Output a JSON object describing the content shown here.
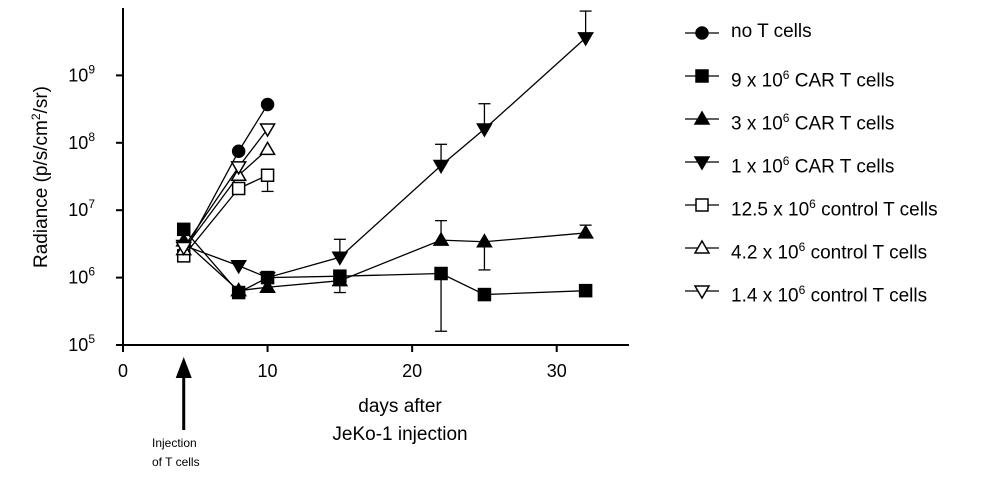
{
  "chart_data": {
    "type": "scatter",
    "xlabel_lines": [
      "days after",
      "JeKo-1 injection"
    ],
    "ylabel_parts": [
      "Radiance (p/s/cm",
      "2",
      "/sr)"
    ],
    "xlim": [
      0,
      35
    ],
    "ylim": [
      100000,
      10000000000
    ],
    "yscale": "log",
    "x_ticks": [
      0,
      10,
      20,
      30
    ],
    "y_ticks": [
      {
        "value": 100000,
        "base": "10",
        "exp": "5"
      },
      {
        "value": 1000000,
        "base": "10",
        "exp": "6"
      },
      {
        "value": 10000000,
        "base": "10",
        "exp": "7"
      },
      {
        "value": 100000000,
        "base": "10",
        "exp": "8"
      },
      {
        "value": 1000000000,
        "base": "10",
        "exp": "9"
      }
    ],
    "annotation": {
      "arrow_at_x": 4.2,
      "lines": [
        "Injection",
        "of T cells"
      ]
    },
    "series": [
      {
        "name": "no T cells",
        "label_parts": [
          "no T cells"
        ],
        "marker": "circle",
        "filled": true,
        "points": [
          [
            4.2,
            2300000
          ],
          [
            8,
            75000000
          ],
          [
            10,
            370000000
          ]
        ]
      },
      {
        "name": "9 x 10^6 CAR T cells",
        "label_parts": [
          "9 x 10",
          "6",
          " CAR T cells"
        ],
        "marker": "square",
        "filled": true,
        "points": [
          [
            4.2,
            5200000,
            null
          ],
          [
            8,
            600000,
            null
          ],
          [
            10,
            1000000,
            null
          ],
          [
            15,
            1050000,
            1200000
          ],
          [
            22,
            1150000,
            160000
          ],
          [
            25,
            560000,
            null
          ],
          [
            32,
            640000,
            null
          ]
        ]
      },
      {
        "name": "3 x 10^6 CAR T cells",
        "label_parts": [
          "3 x 10",
          "6",
          " CAR T cells"
        ],
        "marker": "triangle-up",
        "filled": true,
        "points": [
          [
            4.2,
            3500000,
            null
          ],
          [
            8,
            640000,
            null
          ],
          [
            10,
            720000,
            null
          ],
          [
            15,
            900000,
            600000
          ],
          [
            22,
            3600000,
            7000000
          ],
          [
            25,
            3400000,
            1300000
          ],
          [
            32,
            4600000,
            6000000
          ]
        ]
      },
      {
        "name": "1 x 10^6 CAR T cells",
        "label_parts": [
          "1 x 10",
          "6",
          " CAR T cells"
        ],
        "marker": "triangle-down",
        "filled": true,
        "points": [
          [
            4.2,
            3000000,
            null
          ],
          [
            8,
            1500000,
            null
          ],
          [
            10,
            1000000,
            null
          ],
          [
            15,
            2000000,
            3700000
          ],
          [
            22,
            46000000,
            95000000
          ],
          [
            25,
            160000000,
            380000000
          ],
          [
            32,
            3600000000,
            9000000000
          ]
        ]
      },
      {
        "name": "12.5 x 10^6 control T cells",
        "label_parts": [
          "12.5 x 10",
          "6",
          " control T cells"
        ],
        "marker": "square",
        "filled": false,
        "points": [
          [
            4.2,
            2100000,
            null
          ],
          [
            8,
            21000000,
            null
          ],
          [
            10,
            33000000,
            19000000
          ]
        ]
      },
      {
        "name": "4.2 x 10^6 control T cells",
        "label_parts": [
          "4.2 x 10",
          "6",
          " control T cells"
        ],
        "marker": "triangle-up",
        "filled": false,
        "points": [
          [
            4.2,
            2600000,
            null
          ],
          [
            8,
            33000000,
            null
          ],
          [
            10,
            80000000,
            null
          ]
        ]
      },
      {
        "name": "1.4 x 10^6 control T cells",
        "label_parts": [
          "1.4 x 10",
          "6",
          " control T cells"
        ],
        "marker": "triangle-down",
        "filled": false,
        "points": [
          [
            4.2,
            2800000,
            null
          ],
          [
            8,
            44000000,
            null
          ],
          [
            10,
            160000000,
            null
          ]
        ]
      }
    ]
  }
}
